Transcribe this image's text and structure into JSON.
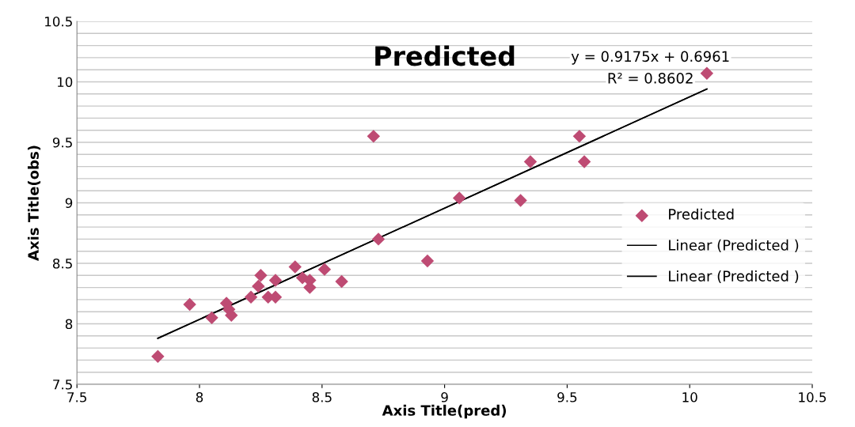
{
  "chart_data": {
    "type": "scatter",
    "title": "Predicted",
    "xlabel": "Axis Title(pred)",
    "ylabel": "Axis Title(obs)",
    "annotations": [
      "y = 0.9175x + 0.6961",
      "R² = 0.8602"
    ],
    "series": [
      {
        "name": "Predicted",
        "color": "#be4b73",
        "marker": "diamond",
        "x": [
          7.83,
          7.96,
          8.05,
          8.11,
          8.12,
          8.13,
          8.21,
          8.24,
          8.25,
          8.28,
          8.31,
          8.31,
          8.39,
          8.42,
          8.45,
          8.45,
          8.51,
          8.58,
          8.93,
          10.07,
          8.71,
          9.55,
          9.35,
          9.57,
          9.06,
          9.31,
          8.73
        ],
        "values": [
          7.73,
          8.16,
          8.05,
          8.17,
          8.12,
          8.07,
          8.22,
          8.31,
          8.4,
          8.22,
          8.22,
          8.36,
          8.47,
          8.38,
          8.36,
          8.3,
          8.45,
          8.35,
          8.52,
          10.07,
          9.55,
          9.55,
          9.34,
          9.34,
          9.04,
          9.02,
          8.7
        ]
      },
      {
        "name": "Linear (Predicted )",
        "type": "line",
        "color": "#000000",
        "marker": "none",
        "x": [
          7.83,
          10.07
        ],
        "values": [
          7.88,
          9.94
        ]
      },
      {
        "name": "Linear (Predicted )",
        "type": "line",
        "color": "#000000",
        "marker": "none",
        "x": [
          7.83,
          10.07
        ],
        "values": [
          7.88,
          9.94
        ]
      }
    ],
    "xlim": [
      7.5,
      10.5
    ],
    "xticks": [
      7.5,
      8,
      8.5,
      9,
      9.5,
      10,
      10.5
    ],
    "ylim": [
      7.5,
      10.5
    ],
    "yticks": [
      7.5,
      {
        "value": 7.6,
        "label": null
      },
      {
        "value": 7.7,
        "label": null
      },
      {
        "value": 7.8,
        "label": null
      },
      {
        "value": 7.9,
        "label": null
      },
      8,
      {
        "value": 8.1,
        "label": null
      },
      {
        "value": 8.2,
        "label": null
      },
      {
        "value": 8.3,
        "label": null
      },
      {
        "value": 8.4,
        "label": null
      },
      8.5,
      {
        "value": 8.6,
        "label": null
      },
      {
        "value": 8.7,
        "label": null
      },
      {
        "value": 8.8,
        "label": null
      },
      {
        "value": 8.9,
        "label": null
      },
      9,
      {
        "value": 9.1,
        "label": null
      },
      {
        "value": 9.2,
        "label": null
      },
      {
        "value": 9.3,
        "label": null
      },
      {
        "value": 9.4,
        "label": null
      },
      9.5,
      {
        "value": 9.6,
        "label": null
      },
      {
        "value": 9.7,
        "label": null
      },
      {
        "value": 9.8,
        "label": null
      },
      {
        "value": 9.9,
        "label": null
      },
      10,
      {
        "value": 10.1,
        "label": null
      },
      {
        "value": 10.2,
        "label": null
      },
      {
        "value": 10.3,
        "label": null
      },
      {
        "value": 10.4,
        "label": null
      },
      10.5
    ],
    "grid": "y",
    "legend": "right"
  }
}
